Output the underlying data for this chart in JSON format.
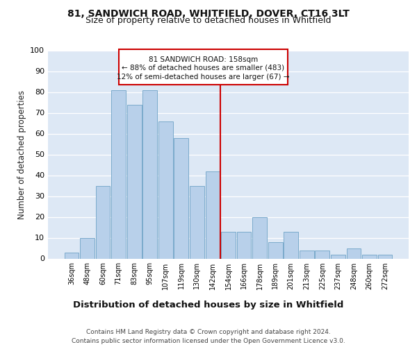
{
  "title1": "81, SANDWICH ROAD, WHITFIELD, DOVER, CT16 3LT",
  "title2": "Size of property relative to detached houses in Whitfield",
  "xlabel": "Distribution of detached houses by size in Whitfield",
  "ylabel": "Number of detached properties",
  "categories": [
    "36sqm",
    "48sqm",
    "60sqm",
    "71sqm",
    "83sqm",
    "95sqm",
    "107sqm",
    "119sqm",
    "130sqm",
    "142sqm",
    "154sqm",
    "166sqm",
    "178sqm",
    "189sqm",
    "201sqm",
    "213sqm",
    "225sqm",
    "237sqm",
    "248sqm",
    "260sqm",
    "272sqm"
  ],
  "values": [
    3,
    10,
    35,
    81,
    74,
    81,
    66,
    58,
    35,
    42,
    13,
    13,
    20,
    8,
    13,
    4,
    4,
    2,
    5,
    2,
    2
  ],
  "bar_color": "#b8d0ea",
  "bar_edge_color": "#7aaacb",
  "vline_idx": 10,
  "vline_color": "#cc0000",
  "annotation_line1": "81 SANDWICH ROAD: 158sqm",
  "annotation_line2": "← 88% of detached houses are smaller (483)",
  "annotation_line3": "12% of semi-detached houses are larger (67) →",
  "annotation_box_color": "#cc0000",
  "annotation_box_fill": "#ffffff",
  "ylim": [
    0,
    100
  ],
  "yticks": [
    0,
    10,
    20,
    30,
    40,
    50,
    60,
    70,
    80,
    90,
    100
  ],
  "background_color": "#dde8f5",
  "footer": "Contains HM Land Registry data © Crown copyright and database right 2024.\nContains public sector information licensed under the Open Government Licence v3.0.",
  "title1_fontsize": 10,
  "title2_fontsize": 9,
  "xlabel_fontsize": 9.5,
  "ylabel_fontsize": 8.5,
  "footer_fontsize": 6.5,
  "tick_fontsize": 7,
  "ytick_fontsize": 8,
  "ann_fontsize": 7.5
}
